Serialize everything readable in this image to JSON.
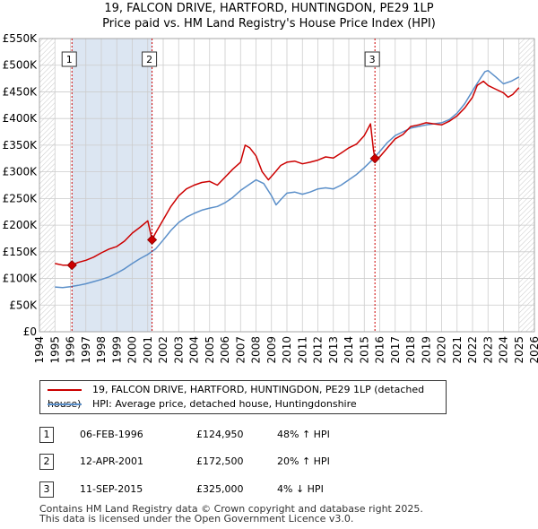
{
  "title_line1": "19, FALCON DRIVE, HARTFORD, HUNTINGDON, PE29 1LP",
  "title_line2": "Price paid vs. HM Land Registry's House Price Index (HPI)",
  "colors": {
    "property": "#cc0000",
    "hpi": "#5b8fc9",
    "shade": "#dce6f2",
    "grid": "#cccccc",
    "marker_line": "#cc0000"
  },
  "chart_data": {
    "type": "line",
    "xlim": [
      1994,
      2026
    ],
    "ylim": [
      0,
      550000
    ],
    "y_ticks": [
      0,
      50000,
      100000,
      150000,
      200000,
      250000,
      300000,
      350000,
      400000,
      450000,
      500000,
      550000
    ],
    "y_tick_labels": [
      "£0",
      "£50K",
      "£100K",
      "£150K",
      "£200K",
      "£250K",
      "£300K",
      "£350K",
      "£400K",
      "£450K",
      "£500K",
      "£550K"
    ],
    "x_tick_labels": [
      "1994",
      "1995",
      "1996",
      "1997",
      "1998",
      "1999",
      "2000",
      "2001",
      "2002",
      "2003",
      "2004",
      "2005",
      "2006",
      "2007",
      "2008",
      "2009",
      "2010",
      "2011",
      "2012",
      "2013",
      "2014",
      "2015",
      "2016",
      "2017",
      "2018",
      "2019",
      "2020",
      "2021",
      "2022",
      "2023",
      "2024",
      "2025",
      "2026"
    ],
    "data_start_year": 1995.0,
    "data_end_year": 2025.0,
    "series": [
      {
        "name": "19, FALCON DRIVE, HARTFORD, HUNTINGDON, PE29 1LP (detached house)",
        "x": [
          1995.0,
          1995.5,
          1996.1,
          1996.5,
          1997.0,
          1997.5,
          1998.0,
          1998.5,
          1999.0,
          1999.5,
          2000.0,
          2000.5,
          2001.0,
          2001.28,
          2001.5,
          2002.0,
          2002.5,
          2003.0,
          2003.5,
          2004.0,
          2004.5,
          2005.0,
          2005.5,
          2006.0,
          2006.5,
          2007.0,
          2007.3,
          2007.6,
          2008.0,
          2008.4,
          2008.8,
          2009.2,
          2009.6,
          2010.0,
          2010.5,
          2011.0,
          2011.5,
          2012.0,
          2012.5,
          2013.0,
          2013.5,
          2014.0,
          2014.5,
          2015.0,
          2015.4,
          2015.6,
          2015.69,
          2016.0,
          2016.5,
          2017.0,
          2017.5,
          2018.0,
          2018.5,
          2019.0,
          2019.5,
          2020.0,
          2020.5,
          2021.0,
          2021.5,
          2022.0,
          2022.3,
          2022.7,
          2023.0,
          2023.5,
          2024.0,
          2024.3,
          2024.6,
          2025.0
        ],
        "y": [
          128000,
          125000,
          124950,
          130000,
          134000,
          140000,
          148000,
          155000,
          160000,
          170000,
          185000,
          196000,
          208000,
          172500,
          185000,
          210000,
          235000,
          255000,
          268000,
          275000,
          280000,
          282000,
          275000,
          290000,
          305000,
          318000,
          350000,
          345000,
          330000,
          300000,
          285000,
          298000,
          312000,
          318000,
          320000,
          315000,
          318000,
          322000,
          328000,
          326000,
          335000,
          345000,
          352000,
          368000,
          390000,
          340000,
          325000,
          328000,
          345000,
          362000,
          370000,
          385000,
          388000,
          392000,
          390000,
          388000,
          395000,
          405000,
          420000,
          440000,
          462000,
          470000,
          462000,
          455000,
          448000,
          440000,
          445000,
          458000
        ]
      },
      {
        "name": "HPI: Average price, detached house, Huntingdonshire",
        "x": [
          1995.0,
          1995.5,
          1996.0,
          1996.5,
          1997.0,
          1997.5,
          1998.0,
          1998.5,
          1999.0,
          1999.5,
          2000.0,
          2000.5,
          2001.0,
          2001.5,
          2002.0,
          2002.5,
          2003.0,
          2003.5,
          2004.0,
          2004.5,
          2005.0,
          2005.5,
          2006.0,
          2006.5,
          2007.0,
          2007.5,
          2008.0,
          2008.5,
          2009.0,
          2009.3,
          2009.6,
          2010.0,
          2010.5,
          2011.0,
          2011.5,
          2012.0,
          2012.5,
          2013.0,
          2013.5,
          2014.0,
          2014.5,
          2015.0,
          2015.5,
          2016.0,
          2016.5,
          2017.0,
          2017.5,
          2018.0,
          2018.5,
          2019.0,
          2019.5,
          2020.0,
          2020.5,
          2021.0,
          2021.5,
          2022.0,
          2022.5,
          2022.8,
          2023.0,
          2023.5,
          2024.0,
          2024.5,
          2025.0
        ],
        "y": [
          84000,
          83000,
          84500,
          87000,
          90000,
          94000,
          98000,
          103000,
          110000,
          118000,
          128000,
          137000,
          145000,
          155000,
          172000,
          190000,
          205000,
          215000,
          222000,
          228000,
          232000,
          235000,
          242000,
          252000,
          265000,
          275000,
          285000,
          278000,
          255000,
          238000,
          248000,
          260000,
          262000,
          258000,
          262000,
          268000,
          270000,
          268000,
          275000,
          285000,
          295000,
          308000,
          322000,
          338000,
          355000,
          368000,
          375000,
          382000,
          385000,
          388000,
          390000,
          392000,
          398000,
          410000,
          428000,
          452000,
          475000,
          488000,
          490000,
          478000,
          465000,
          470000,
          478000
        ]
      }
    ],
    "sales": [
      {
        "label": "1",
        "date": "06-FEB-1996",
        "x": 1996.1,
        "price": "£124,950",
        "value": 124950,
        "hpi": "48% ↑ HPI"
      },
      {
        "label": "2",
        "date": "12-APR-2001",
        "x": 2001.28,
        "price": "£172,500",
        "value": 172500,
        "hpi": "20% ↑ HPI"
      },
      {
        "label": "3",
        "date": "11-SEP-2015",
        "x": 2015.69,
        "price": "£325,000",
        "value": 325000,
        "hpi": "4% ↓ HPI"
      }
    ]
  },
  "legend": {
    "property_label": "19, FALCON DRIVE, HARTFORD, HUNTINGDON, PE29 1LP (detached house)",
    "hpi_label": "HPI: Average price, detached house, Huntingdonshire"
  },
  "footer": {
    "line1": "Contains HM Land Registry data © Crown copyright and database right 2025.",
    "line2": "This data is licensed under the Open Government Licence v3.0."
  }
}
